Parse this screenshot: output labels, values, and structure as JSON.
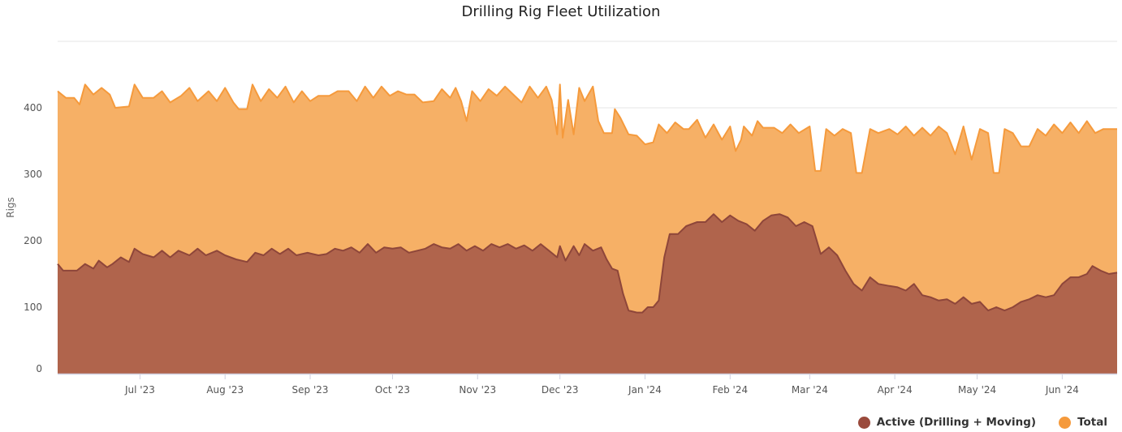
{
  "chart_data": {
    "type": "area",
    "title": "Drilling Rig Fleet Utilization",
    "ylabel": "Rigs",
    "xlabel": "",
    "ylim": [
      0,
      500
    ],
    "yticks": [
      0,
      100,
      200,
      300,
      400
    ],
    "xlim": [
      "2023-06-01",
      "2024-06-21"
    ],
    "xticks": [
      {
        "date": "2023-07-01",
        "label": "Jul '23"
      },
      {
        "date": "2023-08-01",
        "label": "Aug '23"
      },
      {
        "date": "2023-09-01",
        "label": "Sep '23"
      },
      {
        "date": "2023-10-01",
        "label": "Oct '23"
      },
      {
        "date": "2023-11-01",
        "label": "Nov '23"
      },
      {
        "date": "2023-12-01",
        "label": "Dec '23"
      },
      {
        "date": "2024-01-01",
        "label": "Jan '24"
      },
      {
        "date": "2024-02-01",
        "label": "Feb '24"
      },
      {
        "date": "2024-03-01",
        "label": "Mar '24"
      },
      {
        "date": "2024-04-01",
        "label": "Apr '24"
      },
      {
        "date": "2024-05-01",
        "label": "May '24"
      },
      {
        "date": "2024-06-01",
        "label": "Jun '24"
      }
    ],
    "grid": true,
    "legend": "bottom-right",
    "series": [
      {
        "name": "Total",
        "color": "#f59a3c",
        "fill": "#f6b066",
        "points": [
          [
            "2023-06-01",
            425
          ],
          [
            "2023-06-04",
            415
          ],
          [
            "2023-06-07",
            415
          ],
          [
            "2023-06-09",
            405
          ],
          [
            "2023-06-11",
            435
          ],
          [
            "2023-06-14",
            420
          ],
          [
            "2023-06-17",
            430
          ],
          [
            "2023-06-20",
            420
          ],
          [
            "2023-06-22",
            400
          ],
          [
            "2023-06-27",
            402
          ],
          [
            "2023-06-29",
            435
          ],
          [
            "2023-07-02",
            415
          ],
          [
            "2023-07-06",
            415
          ],
          [
            "2023-07-09",
            425
          ],
          [
            "2023-07-12",
            408
          ],
          [
            "2023-07-16",
            418
          ],
          [
            "2023-07-19",
            430
          ],
          [
            "2023-07-22",
            410
          ],
          [
            "2023-07-26",
            425
          ],
          [
            "2023-07-29",
            410
          ],
          [
            "2023-08-01",
            430
          ],
          [
            "2023-08-04",
            408
          ],
          [
            "2023-08-06",
            398
          ],
          [
            "2023-08-09",
            398
          ],
          [
            "2023-08-11",
            435
          ],
          [
            "2023-08-14",
            410
          ],
          [
            "2023-08-17",
            428
          ],
          [
            "2023-08-20",
            415
          ],
          [
            "2023-08-23",
            432
          ],
          [
            "2023-08-26",
            408
          ],
          [
            "2023-08-29",
            425
          ],
          [
            "2023-09-01",
            410
          ],
          [
            "2023-09-04",
            418
          ],
          [
            "2023-09-08",
            418
          ],
          [
            "2023-09-11",
            425
          ],
          [
            "2023-09-15",
            425
          ],
          [
            "2023-09-18",
            410
          ],
          [
            "2023-09-21",
            432
          ],
          [
            "2023-09-24",
            415
          ],
          [
            "2023-09-27",
            432
          ],
          [
            "2023-09-30",
            418
          ],
          [
            "2023-10-03",
            425
          ],
          [
            "2023-10-06",
            420
          ],
          [
            "2023-10-09",
            420
          ],
          [
            "2023-10-12",
            408
          ],
          [
            "2023-10-16",
            410
          ],
          [
            "2023-10-19",
            428
          ],
          [
            "2023-10-22",
            415
          ],
          [
            "2023-10-24",
            430
          ],
          [
            "2023-10-26",
            410
          ],
          [
            "2023-10-28",
            380
          ],
          [
            "2023-10-30",
            425
          ],
          [
            "2023-11-02",
            410
          ],
          [
            "2023-11-05",
            428
          ],
          [
            "2023-11-08",
            418
          ],
          [
            "2023-11-11",
            432
          ],
          [
            "2023-11-14",
            420
          ],
          [
            "2023-11-17",
            408
          ],
          [
            "2023-11-20",
            432
          ],
          [
            "2023-11-23",
            415
          ],
          [
            "2023-11-26",
            432
          ],
          [
            "2023-11-28",
            412
          ],
          [
            "2023-11-30",
            360
          ],
          [
            "2023-12-01",
            435
          ],
          [
            "2023-12-02",
            355
          ],
          [
            "2023-12-04",
            412
          ],
          [
            "2023-12-06",
            360
          ],
          [
            "2023-12-08",
            430
          ],
          [
            "2023-12-10",
            410
          ],
          [
            "2023-12-13",
            432
          ],
          [
            "2023-12-15",
            380
          ],
          [
            "2023-12-17",
            362
          ],
          [
            "2023-12-20",
            362
          ],
          [
            "2023-12-21",
            398
          ],
          [
            "2023-12-23",
            385
          ],
          [
            "2023-12-26",
            360
          ],
          [
            "2023-12-29",
            358
          ],
          [
            "2024-01-01",
            345
          ],
          [
            "2024-01-04",
            348
          ],
          [
            "2024-01-06",
            375
          ],
          [
            "2024-01-09",
            362
          ],
          [
            "2024-01-12",
            378
          ],
          [
            "2024-01-15",
            368
          ],
          [
            "2024-01-17",
            368
          ],
          [
            "2024-01-20",
            382
          ],
          [
            "2024-01-23",
            355
          ],
          [
            "2024-01-26",
            375
          ],
          [
            "2024-01-29",
            352
          ],
          [
            "2024-02-01",
            372
          ],
          [
            "2024-02-03",
            335
          ],
          [
            "2024-02-05",
            352
          ],
          [
            "2024-02-06",
            372
          ],
          [
            "2024-02-09",
            358
          ],
          [
            "2024-02-11",
            380
          ],
          [
            "2024-02-13",
            370
          ],
          [
            "2024-02-17",
            370
          ],
          [
            "2024-02-20",
            362
          ],
          [
            "2024-02-23",
            375
          ],
          [
            "2024-02-26",
            362
          ],
          [
            "2024-03-01",
            372
          ],
          [
            "2024-03-03",
            305
          ],
          [
            "2024-03-05",
            305
          ],
          [
            "2024-03-07",
            368
          ],
          [
            "2024-03-10",
            358
          ],
          [
            "2024-03-13",
            368
          ],
          [
            "2024-03-16",
            362
          ],
          [
            "2024-03-18",
            302
          ],
          [
            "2024-03-20",
            302
          ],
          [
            "2024-03-23",
            368
          ],
          [
            "2024-03-26",
            362
          ],
          [
            "2024-03-30",
            368
          ],
          [
            "2024-04-02",
            360
          ],
          [
            "2024-04-05",
            372
          ],
          [
            "2024-04-08",
            358
          ],
          [
            "2024-04-11",
            370
          ],
          [
            "2024-04-14",
            358
          ],
          [
            "2024-04-17",
            372
          ],
          [
            "2024-04-20",
            362
          ],
          [
            "2024-04-23",
            330
          ],
          [
            "2024-04-26",
            372
          ],
          [
            "2024-04-29",
            322
          ],
          [
            "2024-05-02",
            368
          ],
          [
            "2024-05-05",
            362
          ],
          [
            "2024-05-07",
            302
          ],
          [
            "2024-05-09",
            302
          ],
          [
            "2024-05-11",
            368
          ],
          [
            "2024-05-14",
            362
          ],
          [
            "2024-05-17",
            342
          ],
          [
            "2024-05-20",
            342
          ],
          [
            "2024-05-23",
            368
          ],
          [
            "2024-05-26",
            358
          ],
          [
            "2024-05-29",
            375
          ],
          [
            "2024-06-01",
            362
          ],
          [
            "2024-06-04",
            378
          ],
          [
            "2024-06-07",
            362
          ],
          [
            "2024-06-10",
            380
          ],
          [
            "2024-06-13",
            362
          ],
          [
            "2024-06-16",
            368
          ],
          [
            "2024-06-21",
            368
          ]
        ]
      },
      {
        "name": "Active (Drilling + Moving)",
        "color": "#8e463a",
        "fill": "#b0644c",
        "points": [
          [
            "2023-06-01",
            165
          ],
          [
            "2023-06-03",
            155
          ],
          [
            "2023-06-08",
            155
          ],
          [
            "2023-06-11",
            165
          ],
          [
            "2023-06-14",
            158
          ],
          [
            "2023-06-16",
            170
          ],
          [
            "2023-06-19",
            160
          ],
          [
            "2023-06-21",
            165
          ],
          [
            "2023-06-24",
            175
          ],
          [
            "2023-06-27",
            168
          ],
          [
            "2023-06-29",
            188
          ],
          [
            "2023-07-02",
            180
          ],
          [
            "2023-07-06",
            175
          ],
          [
            "2023-07-09",
            185
          ],
          [
            "2023-07-12",
            175
          ],
          [
            "2023-07-15",
            185
          ],
          [
            "2023-07-19",
            178
          ],
          [
            "2023-07-22",
            188
          ],
          [
            "2023-07-25",
            178
          ],
          [
            "2023-07-29",
            185
          ],
          [
            "2023-08-01",
            178
          ],
          [
            "2023-08-05",
            172
          ],
          [
            "2023-08-09",
            168
          ],
          [
            "2023-08-12",
            182
          ],
          [
            "2023-08-15",
            178
          ],
          [
            "2023-08-18",
            188
          ],
          [
            "2023-08-21",
            180
          ],
          [
            "2023-08-24",
            188
          ],
          [
            "2023-08-27",
            178
          ],
          [
            "2023-08-31",
            182
          ],
          [
            "2023-09-04",
            178
          ],
          [
            "2023-09-07",
            180
          ],
          [
            "2023-09-10",
            188
          ],
          [
            "2023-09-13",
            185
          ],
          [
            "2023-09-16",
            190
          ],
          [
            "2023-09-19",
            182
          ],
          [
            "2023-09-22",
            195
          ],
          [
            "2023-09-25",
            182
          ],
          [
            "2023-09-28",
            190
          ],
          [
            "2023-10-01",
            188
          ],
          [
            "2023-10-04",
            190
          ],
          [
            "2023-10-07",
            182
          ],
          [
            "2023-10-10",
            185
          ],
          [
            "2023-10-13",
            188
          ],
          [
            "2023-10-16",
            195
          ],
          [
            "2023-10-19",
            190
          ],
          [
            "2023-10-22",
            188
          ],
          [
            "2023-10-25",
            195
          ],
          [
            "2023-10-28",
            185
          ],
          [
            "2023-10-31",
            192
          ],
          [
            "2023-11-03",
            185
          ],
          [
            "2023-11-06",
            195
          ],
          [
            "2023-11-09",
            190
          ],
          [
            "2023-11-12",
            195
          ],
          [
            "2023-11-15",
            188
          ],
          [
            "2023-11-18",
            193
          ],
          [
            "2023-11-21",
            185
          ],
          [
            "2023-11-24",
            195
          ],
          [
            "2023-11-27",
            185
          ],
          [
            "2023-11-30",
            175
          ],
          [
            "2023-12-01",
            192
          ],
          [
            "2023-12-03",
            170
          ],
          [
            "2023-12-06",
            192
          ],
          [
            "2023-12-08",
            178
          ],
          [
            "2023-12-10",
            195
          ],
          [
            "2023-12-13",
            185
          ],
          [
            "2023-12-16",
            190
          ],
          [
            "2023-12-18",
            172
          ],
          [
            "2023-12-20",
            158
          ],
          [
            "2023-12-22",
            155
          ],
          [
            "2023-12-24",
            120
          ],
          [
            "2023-12-26",
            95
          ],
          [
            "2023-12-29",
            92
          ],
          [
            "2023-12-31",
            92
          ],
          [
            "2024-01-02",
            100
          ],
          [
            "2024-01-04",
            100
          ],
          [
            "2024-01-06",
            110
          ],
          [
            "2024-01-08",
            175
          ],
          [
            "2024-01-10",
            210
          ],
          [
            "2024-01-13",
            210
          ],
          [
            "2024-01-16",
            222
          ],
          [
            "2024-01-20",
            228
          ],
          [
            "2024-01-23",
            228
          ],
          [
            "2024-01-26",
            240
          ],
          [
            "2024-01-29",
            228
          ],
          [
            "2024-02-01",
            238
          ],
          [
            "2024-02-04",
            230
          ],
          [
            "2024-02-07",
            225
          ],
          [
            "2024-02-10",
            215
          ],
          [
            "2024-02-13",
            230
          ],
          [
            "2024-02-16",
            238
          ],
          [
            "2024-02-19",
            240
          ],
          [
            "2024-02-22",
            235
          ],
          [
            "2024-02-25",
            222
          ],
          [
            "2024-02-28",
            228
          ],
          [
            "2024-03-02",
            222
          ],
          [
            "2024-03-05",
            180
          ],
          [
            "2024-03-08",
            190
          ],
          [
            "2024-03-11",
            178
          ],
          [
            "2024-03-14",
            155
          ],
          [
            "2024-03-17",
            135
          ],
          [
            "2024-03-20",
            125
          ],
          [
            "2024-03-23",
            145
          ],
          [
            "2024-03-26",
            135
          ],
          [
            "2024-03-30",
            132
          ],
          [
            "2024-04-02",
            130
          ],
          [
            "2024-04-05",
            125
          ],
          [
            "2024-04-08",
            135
          ],
          [
            "2024-04-11",
            118
          ],
          [
            "2024-04-14",
            115
          ],
          [
            "2024-04-17",
            110
          ],
          [
            "2024-04-20",
            112
          ],
          [
            "2024-04-23",
            105
          ],
          [
            "2024-04-26",
            115
          ],
          [
            "2024-04-29",
            105
          ],
          [
            "2024-05-02",
            108
          ],
          [
            "2024-05-05",
            95
          ],
          [
            "2024-05-08",
            100
          ],
          [
            "2024-05-11",
            95
          ],
          [
            "2024-05-14",
            100
          ],
          [
            "2024-05-17",
            108
          ],
          [
            "2024-05-20",
            112
          ],
          [
            "2024-05-23",
            118
          ],
          [
            "2024-05-26",
            115
          ],
          [
            "2024-05-29",
            118
          ],
          [
            "2024-06-01",
            135
          ],
          [
            "2024-06-04",
            145
          ],
          [
            "2024-06-07",
            145
          ],
          [
            "2024-06-10",
            150
          ],
          [
            "2024-06-12",
            162
          ],
          [
            "2024-06-15",
            155
          ],
          [
            "2024-06-18",
            150
          ],
          [
            "2024-06-21",
            152
          ]
        ]
      }
    ]
  },
  "legend": {
    "items": [
      {
        "label": "Active (Drilling + Moving)",
        "color": "#9a4a3c"
      },
      {
        "label": "Total",
        "color": "#f59a3c"
      }
    ]
  }
}
